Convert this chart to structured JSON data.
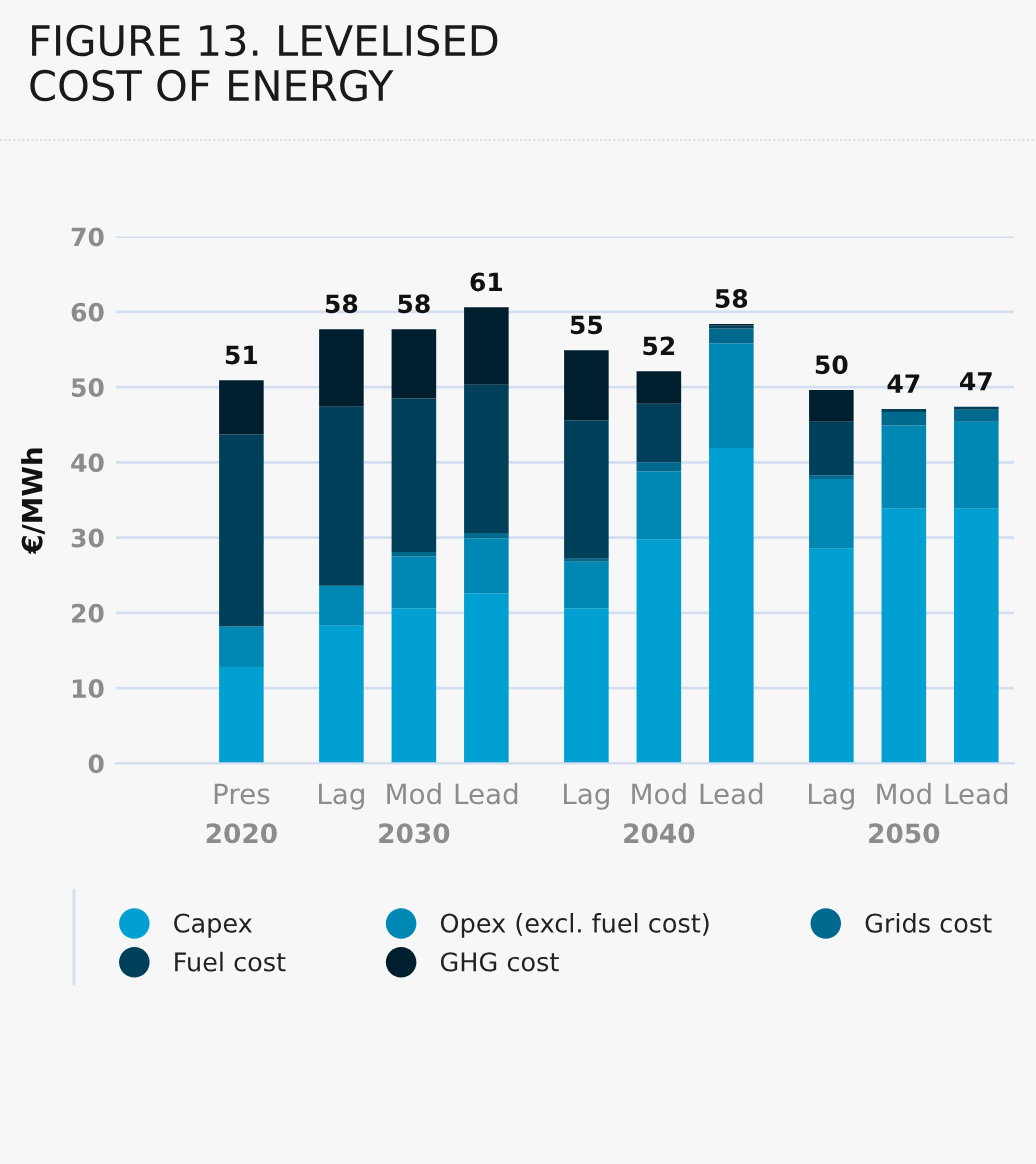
{
  "chart_data": {
    "type": "bar",
    "stacked": true,
    "title": "FIGURE 13. LEVELISED\nCOST OF ENERGY",
    "ylabel": "€/MWh",
    "categories": [
      "Pres\n2020",
      null,
      "Lag",
      "Mod\n2030",
      "Lead",
      null,
      "Lag",
      "Mod\n2040",
      "Lead",
      null,
      "Lag",
      "Mod\n2050",
      "Lead"
    ],
    "series": [
      {
        "name": "Capex",
        "color": "#00a0d2",
        "values": [
          12.8,
          null,
          18.3,
          20.6,
          22.6,
          null,
          20.6,
          29.8,
          41.9,
          null,
          28.6,
          33.9,
          33.9
        ]
      },
      {
        "name": "Opex (excl. fuel cost)",
        "color": "#0088b5",
        "values": [
          5.4,
          null,
          5.3,
          6.9,
          7.3,
          null,
          6.2,
          9.0,
          13.9,
          null,
          9.2,
          11.0,
          11.5
        ]
      },
      {
        "name": "Grids cost",
        "color": "#006a8e",
        "values": [
          0,
          null,
          0,
          0.6,
          0.7,
          null,
          0.4,
          1.2,
          2.0,
          null,
          0.5,
          1.8,
          1.6
        ]
      },
      {
        "name": "Fuel cost",
        "color": "#00405a",
        "values": [
          25.5,
          null,
          23.8,
          20.4,
          19.7,
          null,
          18.4,
          7.8,
          0.4,
          null,
          7.1,
          0.4,
          0.4
        ]
      },
      {
        "name": "GHG cost",
        "color": "#001f2e",
        "values": [
          7.2,
          null,
          10.3,
          9.2,
          10.3,
          null,
          9.3,
          4.3,
          0.2,
          null,
          4.2,
          0,
          0
        ]
      }
    ],
    "totals": [
      "51",
      null,
      "58",
      "58",
      "61",
      null,
      "55",
      "52",
      "58",
      null,
      "50",
      "47",
      "47"
    ],
    "ylim": [
      0,
      70
    ],
    "yticks": [
      0,
      10,
      20,
      30,
      40,
      50,
      60,
      70
    ],
    "grid": "y",
    "legend": "bottom"
  }
}
